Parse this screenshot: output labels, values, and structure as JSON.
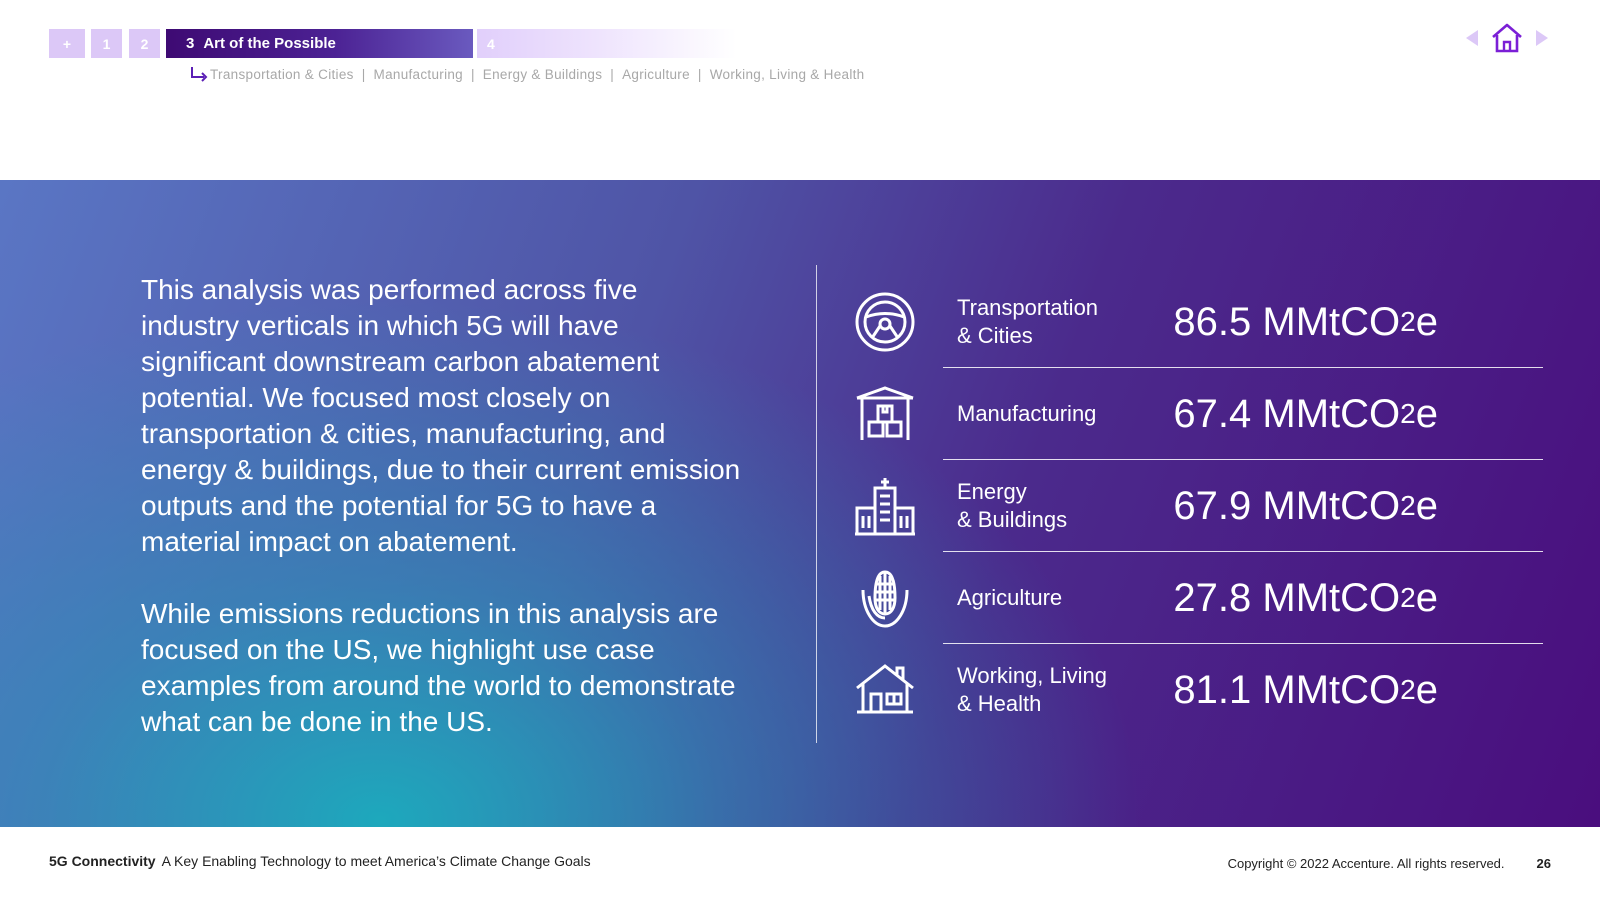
{
  "nav": {
    "tabs": [
      {
        "label": "+"
      },
      {
        "label": "1"
      },
      {
        "label": "2"
      },
      {
        "number": "3",
        "label": "Art of the Possible"
      },
      {
        "label": "4"
      }
    ],
    "subsections": [
      "Transportation & Cities",
      "Manufacturing",
      "Energy & Buildings",
      "Agriculture",
      "Working, Living & Health"
    ],
    "separator": "|",
    "icons": {
      "prev": "triangle-left-icon",
      "home": "home-icon",
      "next": "triangle-right-icon"
    },
    "colors": {
      "active_tab": "#3e0a73",
      "inactive_tab": "#dcc8f7",
      "home_icon": "#7b1fd6",
      "arrows": "#dcc8f7"
    }
  },
  "intro": {
    "paragraphs": [
      "This analysis was performed across five industry verticals in which 5G will have significant downstream carbon abatement potential. We focused most closely on transportation & cities, manufacturing, and energy & buildings, due to their current emission outputs and the potential for 5G to have a material impact on abatement.",
      "While emissions reductions in this analysis are focused on the US, we highlight use case examples from around the world to demonstrate what can be done in the US."
    ]
  },
  "verticals": [
    {
      "icon": "steering-wheel-icon",
      "label_line1": "Transportation",
      "label_line2": "& Cities",
      "value": "86.5",
      "unit_prefix": "MMtCO",
      "unit_sub": "2",
      "unit_suffix": "e"
    },
    {
      "icon": "factory-boxes-icon",
      "label_line1": "Manufacturing",
      "label_line2": "",
      "value": "67.4",
      "unit_prefix": "MMtCO",
      "unit_sub": "2",
      "unit_suffix": "e"
    },
    {
      "icon": "buildings-icon",
      "label_line1": "Energy",
      "label_line2": "& Buildings",
      "value": "67.9",
      "unit_prefix": "MMtCO",
      "unit_sub": "2",
      "unit_suffix": "e"
    },
    {
      "icon": "corn-leaf-icon",
      "label_line1": "Agriculture",
      "label_line2": "",
      "value": "27.8",
      "unit_prefix": "MMtCO",
      "unit_sub": "2",
      "unit_suffix": "e"
    },
    {
      "icon": "house-icon",
      "label_line1": "Working, Living",
      "label_line2": "& Health",
      "value": "81.1",
      "unit_prefix": "MMtCO",
      "unit_sub": "2",
      "unit_suffix": "e"
    }
  ],
  "footer": {
    "brand": "5G Connectivity",
    "subtitle": "A Key Enabling Technology to meet America’s Climate Change Goals",
    "copyright": "Copyright © 2022 Accenture. All rights reserved.",
    "page_number": "26"
  },
  "colors": {
    "band_teal": "#19afbe",
    "band_blue": "#5a76c4",
    "band_purple": "#4a0e7e",
    "text_on_band": "#ffffff"
  }
}
